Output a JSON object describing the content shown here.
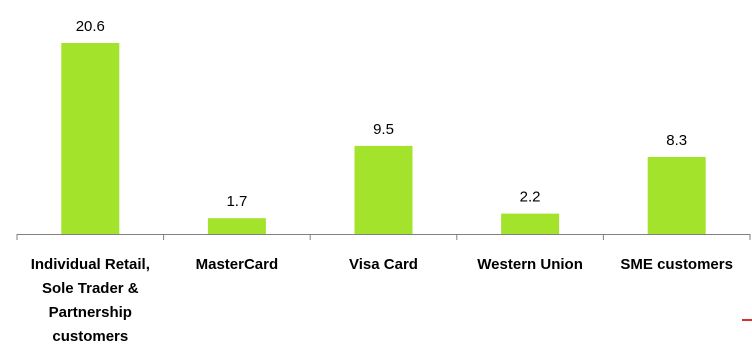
{
  "chart_data": {
    "type": "bar",
    "categories": [
      [
        "Individual Retail,",
        "Sole Trader &",
        "Partnership",
        "customers"
      ],
      [
        "MasterCard"
      ],
      [
        "Visa Card"
      ],
      [
        "Western Union"
      ],
      [
        "SME customers"
      ]
    ],
    "values": [
      20.6,
      1.7,
      9.5,
      2.2,
      8.3
    ],
    "value_labels": [
      "20.6",
      "1.7",
      "9.5",
      "2.2",
      "8.3"
    ],
    "title": "",
    "xlabel": "",
    "ylabel": "",
    "ylim": [
      0,
      20.6
    ],
    "grid": false,
    "legend": "none",
    "colors": {
      "bar": "#a3e32b",
      "axis": "#808080",
      "text": "#000000",
      "accent_mark": "#d9302a"
    }
  }
}
